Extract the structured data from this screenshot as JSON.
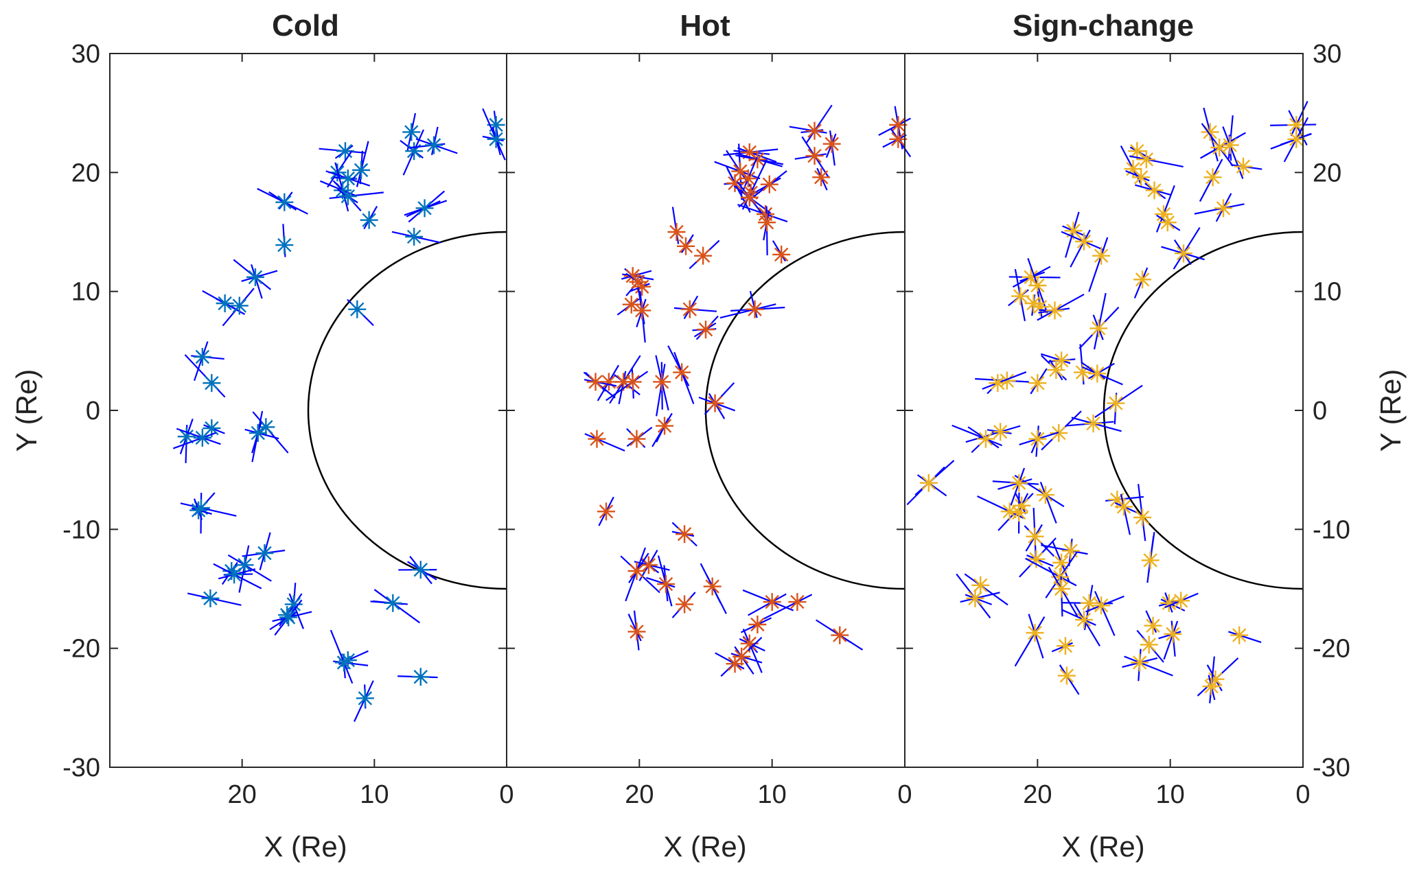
{
  "colors": {
    "cold": "#0072BD",
    "hot": "#D95319",
    "sign_change": "#EDB120",
    "vector": "#0000FF",
    "boundary": "#000000",
    "axis": "#262626"
  },
  "chart_data": [
    {
      "type": "scatter",
      "title": "Cold",
      "xlabel": "X (Re)",
      "ylabel": "Y (Re)",
      "xlim": [
        30,
        0
      ],
      "ylim": [
        -30,
        30
      ],
      "xticks": [
        20,
        10,
        0
      ],
      "yticks": [
        30,
        20,
        10,
        0,
        -10,
        -20,
        -30
      ],
      "boundary": "semicircle of radius 15 Re centered at origin",
      "marker": "asterisk",
      "color": "#0072BD",
      "points": [
        [
          0.8,
          24
        ],
        [
          0.8,
          22.8
        ],
        [
          7.2,
          23.4
        ],
        [
          7,
          21.8
        ],
        [
          5.5,
          22.3
        ],
        [
          12.2,
          21.8
        ],
        [
          12.8,
          20
        ],
        [
          12,
          19.5
        ],
        [
          11,
          20.2
        ],
        [
          12.4,
          18.5
        ],
        [
          12,
          18
        ],
        [
          10.4,
          16
        ],
        [
          6.2,
          17
        ],
        [
          7,
          14.6
        ],
        [
          16.8,
          17.5
        ],
        [
          16.8,
          13.9
        ],
        [
          19,
          11.2
        ],
        [
          21.3,
          9
        ],
        [
          20.2,
          8.8
        ],
        [
          11.3,
          8.5
        ],
        [
          23,
          4.5
        ],
        [
          22.3,
          2.3
        ],
        [
          22.3,
          -1.5
        ],
        [
          24.2,
          -2.2
        ],
        [
          23,
          -2.3
        ],
        [
          18.2,
          -1.4
        ],
        [
          18.8,
          -1.9
        ],
        [
          23.1,
          -8.2
        ],
        [
          23.3,
          -8.4
        ],
        [
          18.3,
          -12
        ],
        [
          19.8,
          -13
        ],
        [
          20.8,
          -13.5
        ],
        [
          22.4,
          -15.8
        ],
        [
          20.6,
          -13.8
        ],
        [
          16.6,
          -17.2
        ],
        [
          16.1,
          -16.3
        ],
        [
          16.5,
          -17.4
        ],
        [
          12,
          -21
        ],
        [
          12.3,
          -21.2
        ],
        [
          8.6,
          -16.2
        ],
        [
          6.5,
          -13.4
        ],
        [
          6.5,
          -22.4
        ],
        [
          10.7,
          -24.2
        ]
      ]
    },
    {
      "type": "scatter",
      "title": "Hot",
      "xlabel": "X (Re)",
      "xlim": [
        30,
        0
      ],
      "ylim": [
        -30,
        30
      ],
      "xticks": [
        20,
        10,
        0
      ],
      "yticks": [
        30,
        20,
        10,
        0,
        -10,
        -20,
        -30
      ],
      "boundary": "semicircle of radius 15 Re centered at origin",
      "marker": "asterisk",
      "color": "#D95319",
      "points": [
        [
          0.5,
          24
        ],
        [
          0.5,
          22.8
        ],
        [
          6.8,
          23.5
        ],
        [
          5.5,
          22.4
        ],
        [
          6.8,
          21.4
        ],
        [
          6.3,
          19.6
        ],
        [
          11.7,
          21.7
        ],
        [
          11.1,
          21.1
        ],
        [
          12.4,
          20.1
        ],
        [
          12.8,
          19.1
        ],
        [
          11.8,
          19.5
        ],
        [
          11.6,
          18.3
        ],
        [
          10.2,
          19
        ],
        [
          11.7,
          17.9
        ],
        [
          10.5,
          16.5
        ],
        [
          10.4,
          15.8
        ],
        [
          9.3,
          13.1
        ],
        [
          17.2,
          15
        ],
        [
          16.5,
          13.8
        ],
        [
          15.2,
          13
        ],
        [
          20.5,
          11.3
        ],
        [
          20.1,
          10.8
        ],
        [
          19.8,
          10.4
        ],
        [
          20.6,
          8.9
        ],
        [
          19.8,
          8.4
        ],
        [
          16.2,
          8.5
        ],
        [
          11.3,
          8.5
        ],
        [
          15,
          6.8
        ],
        [
          16.8,
          3.2
        ],
        [
          18.3,
          2.4
        ],
        [
          22.3,
          2.4
        ],
        [
          23.3,
          2.4
        ],
        [
          21.2,
          2.4
        ],
        [
          20.5,
          2.4
        ],
        [
          14.3,
          0.6
        ],
        [
          18.1,
          -1.3
        ],
        [
          20.2,
          -2.4
        ],
        [
          23.2,
          -2.4
        ],
        [
          22.5,
          -8.5
        ],
        [
          16.6,
          -10.4
        ],
        [
          19.3,
          -13
        ],
        [
          20.2,
          -13.5
        ],
        [
          18,
          -14.6
        ],
        [
          14.5,
          -14.8
        ],
        [
          16.6,
          -16.3
        ],
        [
          10,
          -16.1
        ],
        [
          8.1,
          -16.1
        ],
        [
          11.1,
          -18
        ],
        [
          20.2,
          -18.6
        ],
        [
          11.7,
          -19.6
        ],
        [
          12.3,
          -20.7
        ],
        [
          12.8,
          -21.3
        ],
        [
          4.9,
          -18.9
        ]
      ]
    },
    {
      "type": "scatter",
      "title": "Sign-change",
      "xlabel": "X (Re)",
      "ylabel": "Y (Re)",
      "xlim": [
        30,
        0
      ],
      "ylim": [
        -30,
        30
      ],
      "xticks": [
        20,
        10,
        0
      ],
      "yticks": [
        30,
        20,
        10,
        0,
        -10,
        -20,
        -30
      ],
      "boundary": "semicircle of radius 15 Re centered at origin",
      "marker": "asterisk",
      "color": "#EDB120",
      "points": [
        [
          0.5,
          24
        ],
        [
          0.5,
          22.8
        ],
        [
          7,
          23.4
        ],
        [
          6.3,
          22.1
        ],
        [
          5.5,
          22.3
        ],
        [
          6.8,
          19.6
        ],
        [
          4.5,
          20.5
        ],
        [
          6,
          17
        ],
        [
          12.5,
          21.8
        ],
        [
          11.8,
          21.1
        ],
        [
          12.8,
          20.3
        ],
        [
          12.2,
          19.6
        ],
        [
          11.2,
          18.5
        ],
        [
          10.5,
          16.5
        ],
        [
          10.2,
          15.8
        ],
        [
          9,
          13.2
        ],
        [
          12.1,
          11
        ],
        [
          17.3,
          15.1
        ],
        [
          16.5,
          14.2
        ],
        [
          15.2,
          13
        ],
        [
          20.5,
          11.2
        ],
        [
          20,
          10.5
        ],
        [
          21.3,
          9.6
        ],
        [
          19.8,
          8.7
        ],
        [
          20.3,
          9
        ],
        [
          18.7,
          8.4
        ],
        [
          15.4,
          6.9
        ],
        [
          18.2,
          4.2
        ],
        [
          18.6,
          3.4
        ],
        [
          16.6,
          3.2
        ],
        [
          15.5,
          3.1
        ],
        [
          22.3,
          2.5
        ],
        [
          23,
          2.3
        ],
        [
          20,
          2.3
        ],
        [
          14.1,
          0.6
        ],
        [
          15.8,
          -1.1
        ],
        [
          18.4,
          -1.9
        ],
        [
          22.8,
          -1.8
        ],
        [
          23.9,
          -2.4
        ],
        [
          20,
          -2.4
        ],
        [
          28.2,
          -6.1
        ],
        [
          19.4,
          -7.1
        ],
        [
          21.4,
          -6.1
        ],
        [
          21.2,
          -8
        ],
        [
          22.1,
          -8.5
        ],
        [
          21.4,
          -8.6
        ],
        [
          14,
          -7.5
        ],
        [
          13.5,
          -8.1
        ],
        [
          12.1,
          -9
        ],
        [
          20.2,
          -10.6
        ],
        [
          11.5,
          -12.6
        ],
        [
          17.5,
          -11.8
        ],
        [
          18.2,
          -12.8
        ],
        [
          20.1,
          -12.5
        ],
        [
          18.3,
          -14
        ],
        [
          18.2,
          -15
        ],
        [
          24.3,
          -14.7
        ],
        [
          16.1,
          -16.2
        ],
        [
          15.2,
          -16.4
        ],
        [
          16.5,
          -17.6
        ],
        [
          10.1,
          -16.2
        ],
        [
          9.2,
          -16
        ],
        [
          24.7,
          -15.8
        ],
        [
          11.3,
          -18.1
        ],
        [
          11.6,
          -19.7
        ],
        [
          12.3,
          -21.2
        ],
        [
          9.8,
          -18.8
        ],
        [
          20.2,
          -18.7
        ],
        [
          17.9,
          -19.8
        ],
        [
          17.8,
          -22.3
        ],
        [
          6.6,
          -22.6
        ],
        [
          6.9,
          -23.2
        ],
        [
          4.8,
          -18.9
        ]
      ]
    }
  ]
}
